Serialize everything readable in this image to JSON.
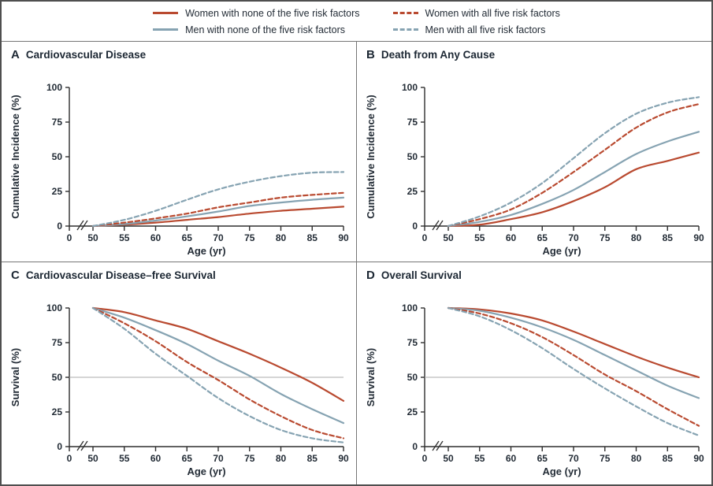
{
  "colors": {
    "women": "#b94a30",
    "men": "#86a3b2",
    "text": "#232c36",
    "axis": "#2e2e2e",
    "divider": "#767676",
    "border": "#4f4f4f",
    "ref_line": "#ababab"
  },
  "legend": {
    "items": [
      {
        "label": "Women with none of the five risk factors",
        "color": "women",
        "dash": false
      },
      {
        "label": "Men with none of the five risk factors",
        "color": "men",
        "dash": false
      },
      {
        "label": "Women with all five risk factors",
        "color": "women",
        "dash": true
      },
      {
        "label": "Men with all five risk factors",
        "color": "men",
        "dash": true
      }
    ]
  },
  "chart_data": [
    {
      "type": "line",
      "panel_label": "A",
      "title": "Cardiovascular Disease",
      "xlabel": "Age (yr)",
      "ylabel": "Cumulative Incidence (%)",
      "x": [
        50,
        55,
        60,
        65,
        70,
        75,
        80,
        85,
        90
      ],
      "x_origin_label": "0",
      "x_axis_break": true,
      "yticks": [
        0,
        25,
        50,
        75,
        100
      ],
      "ylim": [
        0,
        100
      ],
      "ref_line": null,
      "series": [
        {
          "name": "Women with none of the five risk factors",
          "color": "women",
          "dash": false,
          "values": [
            0,
            1,
            2.5,
            4.5,
            6.5,
            9,
            11,
            12.5,
            14
          ]
        },
        {
          "name": "Men with none of the five risk factors",
          "color": "men",
          "dash": false,
          "values": [
            0,
            1.5,
            4,
            7,
            10.5,
            14.5,
            17,
            19,
            20.5
          ]
        },
        {
          "name": "Women with all five risk factors",
          "color": "women",
          "dash": true,
          "values": [
            0,
            2.5,
            5.5,
            9,
            13.5,
            17,
            20.5,
            22.5,
            24
          ]
        },
        {
          "name": "Men with all five risk factors",
          "color": "men",
          "dash": true,
          "values": [
            0,
            4.5,
            11,
            19,
            26.5,
            32,
            36,
            38.5,
            39
          ]
        }
      ]
    },
    {
      "type": "line",
      "panel_label": "B",
      "title": "Death from Any Cause",
      "xlabel": "Age (yr)",
      "ylabel": "Cumulative Incidence (%)",
      "x": [
        50,
        55,
        60,
        65,
        70,
        75,
        80,
        85,
        90
      ],
      "x_origin_label": "0",
      "x_axis_break": true,
      "yticks": [
        0,
        25,
        50,
        75,
        100
      ],
      "ylim": [
        0,
        100
      ],
      "ref_line": null,
      "series": [
        {
          "name": "Women with none of the five risk factors",
          "color": "women",
          "dash": false,
          "values": [
            0,
            1,
            5,
            10,
            18,
            28,
            41,
            47,
            53
          ]
        },
        {
          "name": "Men with none of the five risk factors",
          "color": "men",
          "dash": false,
          "values": [
            0,
            3,
            8,
            16,
            26,
            39,
            52,
            61,
            68
          ]
        },
        {
          "name": "Women with all five risk factors",
          "color": "women",
          "dash": true,
          "values": [
            0,
            5,
            12,
            24,
            39,
            55,
            71,
            82,
            88
          ]
        },
        {
          "name": "Men with all five risk factors",
          "color": "men",
          "dash": true,
          "values": [
            0,
            7,
            17,
            31,
            49,
            67,
            81,
            89,
            93
          ]
        }
      ]
    },
    {
      "type": "line",
      "panel_label": "C",
      "title": "Cardiovascular Disease–free Survival",
      "xlabel": "Age (yr)",
      "ylabel": "Survival (%)",
      "x": [
        50,
        55,
        60,
        65,
        70,
        75,
        80,
        85,
        90
      ],
      "x_origin_label": "0",
      "x_axis_break": true,
      "yticks": [
        0,
        25,
        50,
        75,
        100
      ],
      "ylim": [
        0,
        100
      ],
      "ref_line": 50,
      "series": [
        {
          "name": "Women with none of the five risk factors",
          "color": "women",
          "dash": false,
          "values": [
            100,
            97,
            91,
            85,
            76,
            67,
            57,
            46,
            33
          ]
        },
        {
          "name": "Men with none of the five risk factors",
          "color": "men",
          "dash": false,
          "values": [
            100,
            93,
            84,
            74,
            62,
            51,
            38,
            27,
            17
          ]
        },
        {
          "name": "Women with all five risk factors",
          "color": "women",
          "dash": true,
          "values": [
            100,
            89,
            76,
            61,
            48,
            34,
            22,
            12,
            6
          ]
        },
        {
          "name": "Men with all five risk factors",
          "color": "men",
          "dash": true,
          "values": [
            100,
            85,
            67,
            51,
            35,
            22,
            12,
            6,
            3
          ]
        }
      ]
    },
    {
      "type": "line",
      "panel_label": "D",
      "title": "Overall Survival",
      "xlabel": "Age (yr)",
      "ylabel": "Survival (%)",
      "x": [
        50,
        55,
        60,
        65,
        70,
        75,
        80,
        85,
        90
      ],
      "x_origin_label": "0",
      "x_axis_break": true,
      "yticks": [
        0,
        25,
        50,
        75,
        100
      ],
      "ylim": [
        0,
        100
      ],
      "ref_line": 50,
      "series": [
        {
          "name": "Women with none of the five risk factors",
          "color": "women",
          "dash": false,
          "values": [
            100,
            99,
            96,
            91,
            83,
            74,
            65,
            57,
            50
          ]
        },
        {
          "name": "Men with none of the five risk factors",
          "color": "men",
          "dash": false,
          "values": [
            100,
            98,
            93,
            86,
            77,
            66,
            55,
            44,
            35
          ]
        },
        {
          "name": "Women with all five risk factors",
          "color": "women",
          "dash": true,
          "values": [
            100,
            96,
            89,
            79,
            66,
            52,
            40,
            27,
            15
          ]
        },
        {
          "name": "Men with all five risk factors",
          "color": "men",
          "dash": true,
          "values": [
            100,
            94,
            84,
            71,
            56,
            42,
            29,
            17,
            8
          ]
        }
      ]
    }
  ]
}
